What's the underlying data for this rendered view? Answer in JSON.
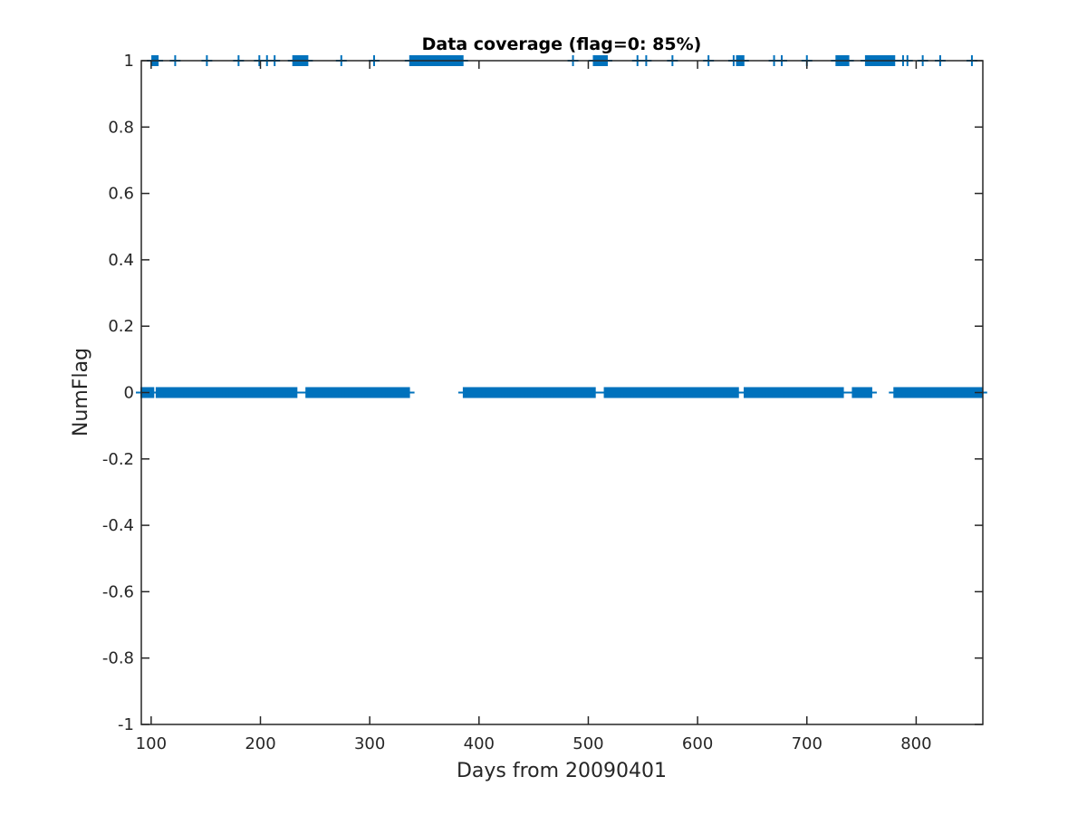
{
  "chart_data": {
    "type": "scatter",
    "title": "Data coverage (flag=0: 85%)",
    "xlabel": "Days from 20090401",
    "ylabel": "NumFlag",
    "xlim": [
      91,
      861
    ],
    "ylim": [
      -1,
      1
    ],
    "x_ticks": [
      100,
      200,
      300,
      400,
      500,
      600,
      700,
      800
    ],
    "y_ticks": [
      -1,
      -0.8,
      -0.6,
      -0.4,
      -0.2,
      0,
      0.2,
      0.4,
      0.6,
      0.8,
      1
    ],
    "grid": false,
    "marker": "+",
    "color": "#0072BD",
    "series": [
      {
        "y": 0,
        "x_ranges": [
          [
            91,
            102
          ],
          [
            105,
            233
          ],
          [
            242,
            336
          ],
          [
            386,
            506
          ],
          [
            515,
            637
          ],
          [
            643,
            733
          ],
          [
            742,
            759
          ],
          [
            780,
            860
          ]
        ]
      },
      {
        "y": 1,
        "x_ranges": [
          [
            101,
            106
          ],
          [
            122,
            122
          ],
          [
            151,
            151
          ],
          [
            180,
            180
          ],
          [
            199,
            199
          ],
          [
            206,
            206
          ],
          [
            213,
            213
          ],
          [
            230,
            243
          ],
          [
            274,
            274
          ],
          [
            304,
            304
          ],
          [
            337,
            385
          ],
          [
            486,
            486
          ],
          [
            505,
            517
          ],
          [
            545,
            545
          ],
          [
            553,
            553
          ],
          [
            577,
            577
          ],
          [
            610,
            610
          ],
          [
            633,
            633
          ],
          [
            636,
            642
          ],
          [
            670,
            670
          ],
          [
            677,
            677
          ],
          [
            700,
            700
          ],
          [
            727,
            738
          ],
          [
            754,
            780
          ],
          [
            788,
            788
          ],
          [
            792,
            792
          ],
          [
            806,
            806
          ],
          [
            822,
            822
          ],
          [
            851,
            851
          ]
        ]
      }
    ]
  }
}
